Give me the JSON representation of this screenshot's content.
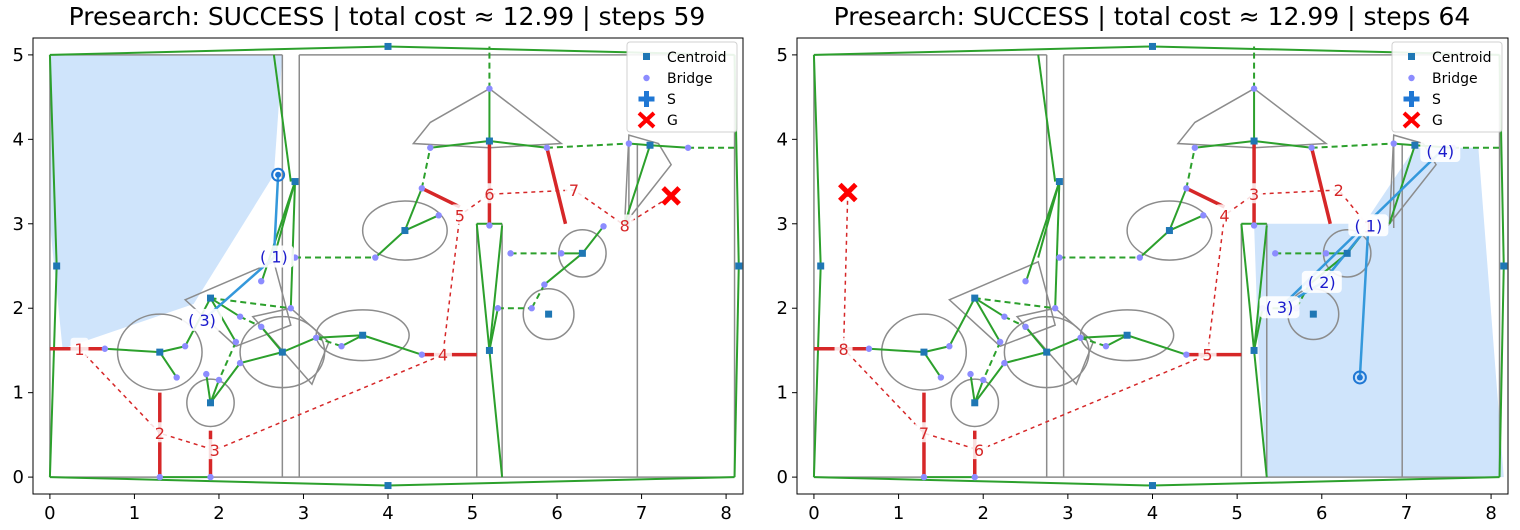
{
  "chart_data": [
    {
      "type": "scatter",
      "title": "Presearch: SUCCESS | total cost ≈ 12.99 | steps 59",
      "xlabel": "",
      "ylabel": "",
      "xlim": [
        -0.2,
        8.2
      ],
      "ylim": [
        -0.2,
        5.2
      ],
      "xticks": [
        0,
        1,
        2,
        3,
        4,
        5,
        6,
        7,
        8
      ],
      "yticks": [
        0,
        1,
        2,
        3,
        4,
        5
      ],
      "legend": {
        "position": "top-right",
        "entries": [
          "Centroid",
          "Bridge",
          "S",
          "G"
        ]
      },
      "start": [
        2.7,
        3.58
      ],
      "goal": [
        7.35,
        3.33
      ],
      "highlight_region": [
        [
          0,
          5
        ],
        [
          2.75,
          5
        ],
        [
          2.65,
          3.58
        ],
        [
          1.7,
          2.05
        ],
        [
          0.15,
          1.52
        ],
        [
          0,
          3
        ]
      ],
      "centroids": [
        [
          0.08,
          2.5
        ],
        [
          4.0,
          5.1
        ],
        [
          7.1,
          3.93
        ],
        [
          8.15,
          2.5
        ],
        [
          4.0,
          -0.1
        ],
        [
          2.9,
          3.5
        ],
        [
          1.9,
          2.12
        ],
        [
          1.3,
          1.48
        ],
        [
          1.9,
          0.88
        ],
        [
          2.75,
          1.48
        ],
        [
          3.7,
          1.68
        ],
        [
          4.2,
          2.92
        ],
        [
          5.2,
          3.98
        ],
        [
          5.2,
          1.5
        ],
        [
          6.3,
          2.65
        ],
        [
          5.9,
          1.93
        ]
      ],
      "bridges": [
        [
          5.2,
          4.6
        ],
        [
          5.88,
          3.9
        ],
        [
          7.55,
          3.9
        ],
        [
          4.5,
          3.9
        ],
        [
          6.85,
          3.95
        ],
        [
          4.4,
          3.42
        ],
        [
          4.6,
          3.1
        ],
        [
          3.85,
          2.6
        ],
        [
          5.2,
          2.98
        ],
        [
          5.45,
          2.65
        ],
        [
          6.05,
          2.65
        ],
        [
          6.55,
          2.97
        ],
        [
          5.85,
          2.28
        ],
        [
          5.7,
          2.0
        ],
        [
          5.3,
          2.0
        ],
        [
          2.9,
          2.6
        ],
        [
          2.5,
          2.32
        ],
        [
          2.85,
          2.0
        ],
        [
          2.25,
          1.9
        ],
        [
          2.5,
          1.78
        ],
        [
          3.15,
          1.65
        ],
        [
          3.45,
          1.55
        ],
        [
          4.4,
          1.45
        ],
        [
          2.2,
          1.6
        ],
        [
          1.6,
          1.55
        ],
        [
          2.25,
          1.35
        ],
        [
          1.85,
          1.22
        ],
        [
          1.5,
          1.18
        ],
        [
          2.0,
          1.15
        ],
        [
          0.65,
          1.52
        ],
        [
          1.3,
          0.0
        ],
        [
          1.9,
          0.0
        ]
      ],
      "planned_path": {
        "labels": [
          "1",
          "2",
          "3",
          "4",
          "5",
          "6",
          "7",
          "8"
        ],
        "points": [
          [
            0.35,
            1.52
          ],
          [
            1.3,
            0.52
          ],
          [
            1.95,
            0.32
          ],
          [
            4.65,
            1.45
          ],
          [
            4.85,
            3.1
          ],
          [
            5.2,
            3.35
          ],
          [
            6.2,
            3.4
          ],
          [
            6.8,
            2.98
          ]
        ]
      },
      "executed_path_labels": [
        "( 1)",
        "( 3)"
      ],
      "executed_path_points": [
        [
          2.65,
          2.6
        ],
        [
          1.8,
          1.85
        ]
      ]
    },
    {
      "type": "scatter",
      "title": "Presearch: SUCCESS | total cost ≈ 12.99 | steps 64",
      "xlabel": "",
      "ylabel": "",
      "xlim": [
        -0.2,
        8.2
      ],
      "ylim": [
        -0.2,
        5.2
      ],
      "xticks": [
        0,
        1,
        2,
        3,
        4,
        5,
        6,
        7,
        8
      ],
      "yticks": [
        0,
        1,
        2,
        3,
        4,
        5
      ],
      "legend": {
        "position": "top-right",
        "entries": [
          "Centroid",
          "Bridge",
          "S",
          "G"
        ]
      },
      "start": [
        6.45,
        1.18
      ],
      "goal": [
        0.4,
        3.37
      ],
      "highlight_region": [
        [
          5.2,
          3.0
        ],
        [
          6.5,
          3.0
        ],
        [
          7.1,
          3.9
        ],
        [
          7.85,
          3.9
        ],
        [
          8.15,
          0.0
        ],
        [
          5.35,
          0.0
        ],
        [
          5.25,
          1.52
        ]
      ],
      "centroids": [
        [
          0.08,
          2.5
        ],
        [
          4.0,
          5.1
        ],
        [
          7.1,
          3.93
        ],
        [
          8.15,
          2.5
        ],
        [
          4.0,
          -0.1
        ],
        [
          2.9,
          3.5
        ],
        [
          1.9,
          2.12
        ],
        [
          1.3,
          1.48
        ],
        [
          1.9,
          0.88
        ],
        [
          2.75,
          1.48
        ],
        [
          3.7,
          1.68
        ],
        [
          4.2,
          2.92
        ],
        [
          5.2,
          3.98
        ],
        [
          5.2,
          1.5
        ],
        [
          6.3,
          2.65
        ],
        [
          5.9,
          1.93
        ]
      ],
      "bridges": [
        [
          5.2,
          4.6
        ],
        [
          5.88,
          3.9
        ],
        [
          7.55,
          3.9
        ],
        [
          4.5,
          3.9
        ],
        [
          6.85,
          3.95
        ],
        [
          4.4,
          3.42
        ],
        [
          4.6,
          3.1
        ],
        [
          3.85,
          2.6
        ],
        [
          5.2,
          2.98
        ],
        [
          5.45,
          2.65
        ],
        [
          6.05,
          2.65
        ],
        [
          6.55,
          2.97
        ],
        [
          5.85,
          2.28
        ],
        [
          5.7,
          2.0
        ],
        [
          5.3,
          2.0
        ],
        [
          2.9,
          2.6
        ],
        [
          2.5,
          2.32
        ],
        [
          2.85,
          2.0
        ],
        [
          2.25,
          1.9
        ],
        [
          2.5,
          1.78
        ],
        [
          3.15,
          1.65
        ],
        [
          3.45,
          1.55
        ],
        [
          4.4,
          1.45
        ],
        [
          2.2,
          1.6
        ],
        [
          1.6,
          1.55
        ],
        [
          2.25,
          1.35
        ],
        [
          1.85,
          1.22
        ],
        [
          1.5,
          1.18
        ],
        [
          2.0,
          1.15
        ],
        [
          0.65,
          1.52
        ],
        [
          1.3,
          0.0
        ],
        [
          1.9,
          0.0
        ]
      ],
      "planned_path": {
        "labels": [
          "1",
          "2",
          "3",
          "4",
          "5",
          "6",
          "7",
          "8"
        ],
        "points": [
          [
            6.55,
            2.97
          ],
          [
            6.2,
            3.4
          ],
          [
            5.2,
            3.35
          ],
          [
            4.85,
            3.1
          ],
          [
            4.65,
            1.45
          ],
          [
            1.95,
            0.32
          ],
          [
            1.3,
            0.52
          ],
          [
            0.35,
            1.52
          ]
        ]
      },
      "executed_path_labels": [
        "( 1)",
        "( 2)",
        "( 3)",
        "( 4)"
      ],
      "executed_path_points": [
        [
          6.55,
          2.97
        ],
        [
          6.0,
          2.3
        ],
        [
          5.5,
          2.0
        ],
        [
          7.4,
          3.85
        ]
      ]
    }
  ],
  "legend_entries": [
    "Centroid",
    "Bridge",
    "S",
    "G"
  ],
  "colors": {
    "centroid": "#1f77b4",
    "bridge": "#8c8cff",
    "start": "#1f77d4",
    "goal": "#ff0000",
    "green": "#2ca02c",
    "blue": "#3498db",
    "red": "#d62728",
    "region": "#cfe4fb"
  }
}
